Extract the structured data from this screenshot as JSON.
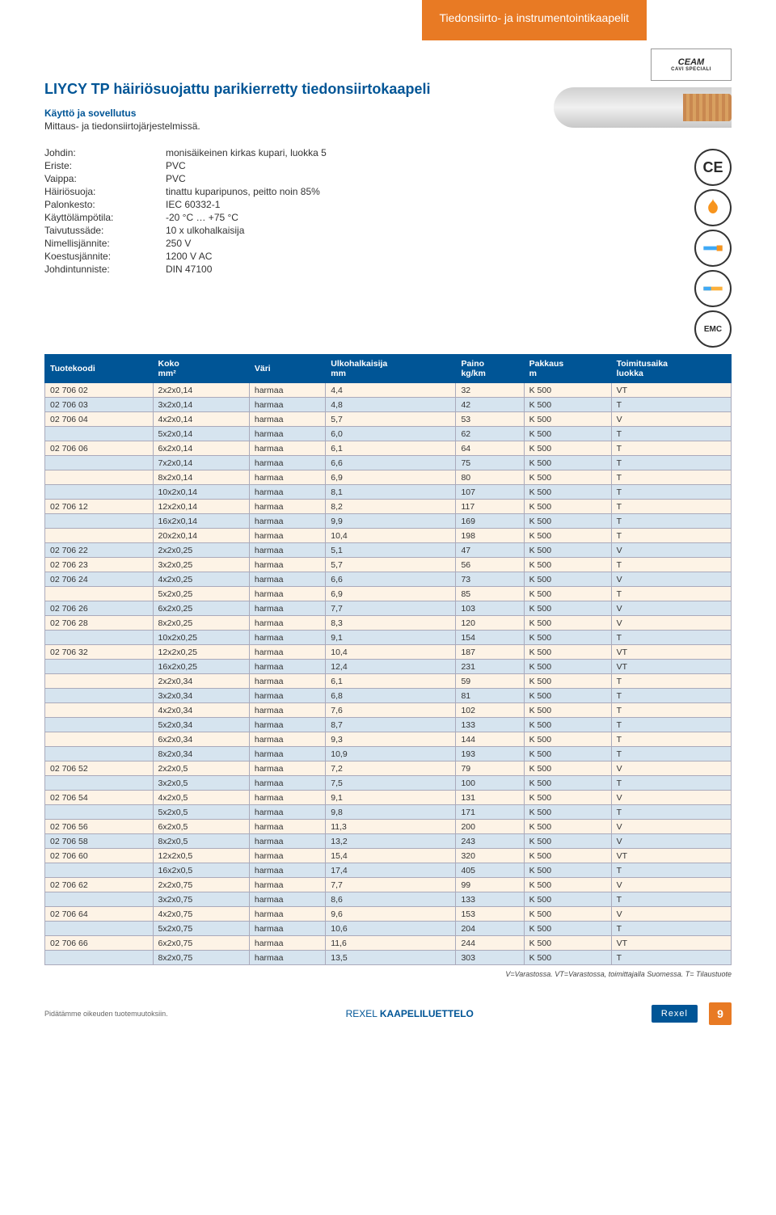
{
  "header_tab": "Tiedonsiirto- ja instrumentointikaapelit",
  "title": "LIYCY TP häiriösuojattu parikierretty tiedonsiirtokaapeli",
  "usage_label": "Käyttö ja sovellutus",
  "usage_text": "Mittaus- ja tiedonsiirtojärjestelmissä.",
  "brand": {
    "name": "CEAM",
    "sub": "CAVI SPECIALI"
  },
  "specs": [
    {
      "k": "Johdin:",
      "v": "monisäikeinen kirkas kupari, luokka 5"
    },
    {
      "k": "Eriste:",
      "v": "PVC"
    },
    {
      "k": "Vaippa:",
      "v": "PVC"
    },
    {
      "k": "Häiriösuoja:",
      "v": "tinattu kuparipunos, peitto noin 85%"
    },
    {
      "k": "Palonkesto:",
      "v": "IEC 60332-1"
    },
    {
      "k": "Käyttölämpötila:",
      "v": "-20 °C … +75 °C"
    },
    {
      "k": "Taivutussäde:",
      "v": "10 x ulkohalkaisija"
    },
    {
      "k": "Nimellisjännite:",
      "v": "250 V"
    },
    {
      "k": "Koestusjännite:",
      "v": "1200 V AC"
    },
    {
      "k": "Johdintunniste:",
      "v": "DIN 47100"
    }
  ],
  "columns": [
    {
      "h1": "Tuotekoodi",
      "h2": ""
    },
    {
      "h1": "Koko",
      "h2": "mm²"
    },
    {
      "h1": "Väri",
      "h2": ""
    },
    {
      "h1": "Ulkohalkaisija",
      "h2": "mm"
    },
    {
      "h1": "Paino",
      "h2": "kg/km"
    },
    {
      "h1": "Pakkaus",
      "h2": "m"
    },
    {
      "h1": "Toimitusaika",
      "h2": "luokka"
    }
  ],
  "rows": [
    [
      "02 706 02",
      "2x2x0,14",
      "harmaa",
      "4,4",
      "32",
      "K 500",
      "VT"
    ],
    [
      "02 706 03",
      "3x2x0,14",
      "harmaa",
      "4,8",
      "42",
      "K 500",
      "T"
    ],
    [
      "02 706 04",
      "4x2x0,14",
      "harmaa",
      "5,7",
      "53",
      "K 500",
      "V"
    ],
    [
      "",
      "5x2x0,14",
      "harmaa",
      "6,0",
      "62",
      "K 500",
      "T"
    ],
    [
      "02 706 06",
      "6x2x0,14",
      "harmaa",
      "6,1",
      "64",
      "K 500",
      "T"
    ],
    [
      "",
      "7x2x0,14",
      "harmaa",
      "6,6",
      "75",
      "K 500",
      "T"
    ],
    [
      "",
      "8x2x0,14",
      "harmaa",
      "6,9",
      "80",
      "K 500",
      "T"
    ],
    [
      "",
      "10x2x0,14",
      "harmaa",
      "8,1",
      "107",
      "K 500",
      "T"
    ],
    [
      "02 706 12",
      "12x2x0,14",
      "harmaa",
      "8,2",
      "117",
      "K 500",
      "T"
    ],
    [
      "",
      "16x2x0,14",
      "harmaa",
      "9,9",
      "169",
      "K 500",
      "T"
    ],
    [
      "",
      "20x2x0,14",
      "harmaa",
      "10,4",
      "198",
      "K 500",
      "T"
    ],
    [
      "02 706 22",
      "2x2x0,25",
      "harmaa",
      "5,1",
      "47",
      "K 500",
      "V"
    ],
    [
      "02 706 23",
      "3x2x0,25",
      "harmaa",
      "5,7",
      "56",
      "K 500",
      "T"
    ],
    [
      "02 706 24",
      "4x2x0,25",
      "harmaa",
      "6,6",
      "73",
      "K 500",
      "V"
    ],
    [
      "",
      "5x2x0,25",
      "harmaa",
      "6,9",
      "85",
      "K 500",
      "T"
    ],
    [
      "02 706 26",
      "6x2x0,25",
      "harmaa",
      "7,7",
      "103",
      "K 500",
      "V"
    ],
    [
      "02 706 28",
      "8x2x0,25",
      "harmaa",
      "8,3",
      "120",
      "K 500",
      "V"
    ],
    [
      "",
      "10x2x0,25",
      "harmaa",
      "9,1",
      "154",
      "K 500",
      "T"
    ],
    [
      "02 706 32",
      "12x2x0,25",
      "harmaa",
      "10,4",
      "187",
      "K 500",
      "VT"
    ],
    [
      "",
      "16x2x0,25",
      "harmaa",
      "12,4",
      "231",
      "K 500",
      "VT"
    ],
    [
      "",
      "2x2x0,34",
      "harmaa",
      "6,1",
      "59",
      "K 500",
      "T"
    ],
    [
      "",
      "3x2x0,34",
      "harmaa",
      "6,8",
      "81",
      "K 500",
      "T"
    ],
    [
      "",
      "4x2x0,34",
      "harmaa",
      "7,6",
      "102",
      "K 500",
      "T"
    ],
    [
      "",
      "5x2x0,34",
      "harmaa",
      "8,7",
      "133",
      "K 500",
      "T"
    ],
    [
      "",
      "6x2x0,34",
      "harmaa",
      "9,3",
      "144",
      "K 500",
      "T"
    ],
    [
      "",
      "8x2x0,34",
      "harmaa",
      "10,9",
      "193",
      "K 500",
      "T"
    ],
    [
      "02 706 52",
      "2x2x0,5",
      "harmaa",
      "7,2",
      "79",
      "K 500",
      "V"
    ],
    [
      "",
      "3x2x0,5",
      "harmaa",
      "7,5",
      "100",
      "K 500",
      "T"
    ],
    [
      "02 706 54",
      "4x2x0,5",
      "harmaa",
      "9,1",
      "131",
      "K 500",
      "V"
    ],
    [
      "",
      "5x2x0,5",
      "harmaa",
      "9,8",
      "171",
      "K 500",
      "T"
    ],
    [
      "02 706 56",
      "6x2x0,5",
      "harmaa",
      "11,3",
      "200",
      "K 500",
      "V"
    ],
    [
      "02 706 58",
      "8x2x0,5",
      "harmaa",
      "13,2",
      "243",
      "K 500",
      "V"
    ],
    [
      "02 706 60",
      "12x2x0,5",
      "harmaa",
      "15,4",
      "320",
      "K 500",
      "VT"
    ],
    [
      "",
      "16x2x0,5",
      "harmaa",
      "17,4",
      "405",
      "K 500",
      "T"
    ],
    [
      "02 706 62",
      "2x2x0,75",
      "harmaa",
      "7,7",
      "99",
      "K 500",
      "V"
    ],
    [
      "",
      "3x2x0,75",
      "harmaa",
      "8,6",
      "133",
      "K 500",
      "T"
    ],
    [
      "02 706 64",
      "4x2x0,75",
      "harmaa",
      "9,6",
      "153",
      "K 500",
      "V"
    ],
    [
      "",
      "5x2x0,75",
      "harmaa",
      "10,6",
      "204",
      "K 500",
      "T"
    ],
    [
      "02 706 66",
      "6x2x0,75",
      "harmaa",
      "11,6",
      "244",
      "K 500",
      "VT"
    ],
    [
      "",
      "8x2x0,75",
      "harmaa",
      "13,5",
      "303",
      "K 500",
      "T"
    ]
  ],
  "table_style": {
    "header_bg": "#005596",
    "header_fg": "#ffffff",
    "row_alt_bg": "#d6e4ef",
    "row_norm_bg": "#fdf3e6",
    "border": "#aab"
  },
  "footnote": "V=Varastossa. VT=Varastossa, toimittajalla Suomessa. T= Tilaustuote",
  "footer": {
    "left": "Pidätämme oikeuden tuotemuutoksiin.",
    "center_a": "REXEL ",
    "center_b": "KAAPELILUETTELO",
    "badge": "Rexel",
    "page": "9"
  },
  "icons": [
    "CE",
    "flame",
    "cable-cut",
    "cable-shield",
    "EMC"
  ]
}
